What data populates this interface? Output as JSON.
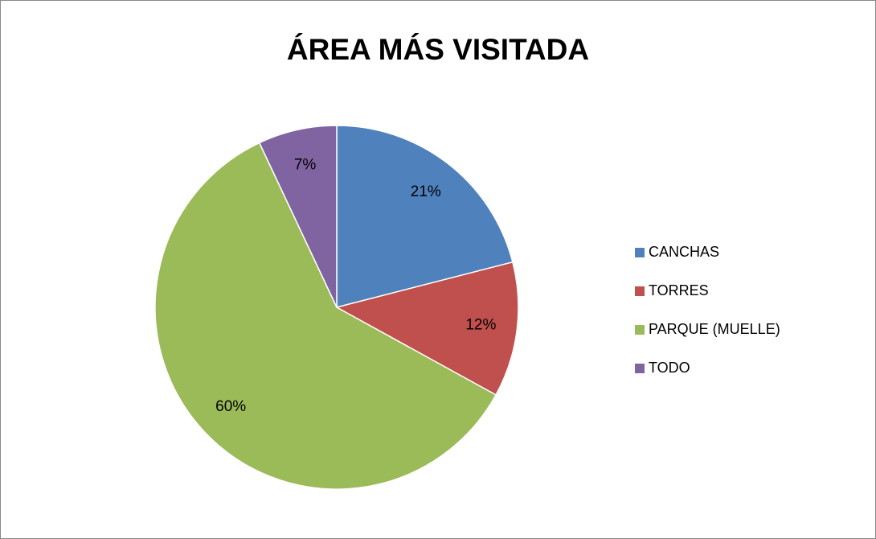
{
  "chart_data": {
    "type": "pie",
    "title": "ÁREA MÁS VISITADA",
    "categories": [
      "CANCHAS",
      "TORRES",
      "PARQUE (MUELLE)",
      "TODO"
    ],
    "values": [
      21,
      12,
      60,
      7
    ],
    "value_labels": [
      "21%",
      "12%",
      "60%",
      "7%"
    ],
    "colors": [
      "#4f81bd",
      "#c0504d",
      "#9bbb59",
      "#8064a2"
    ],
    "legend": "right"
  }
}
